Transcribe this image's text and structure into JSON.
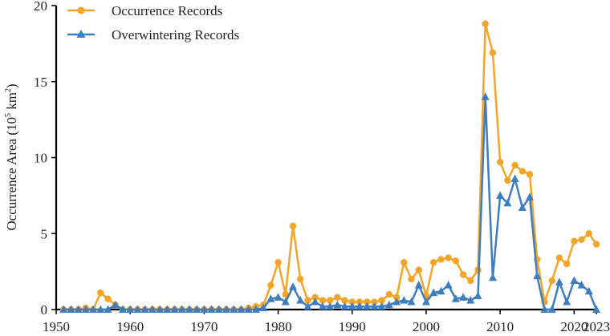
{
  "chart_data": {
    "type": "line",
    "xlabel": "",
    "ylabel": "Occurrence Area (10",
    "ylabel_sup": "5",
    "ylabel_unit": " km",
    "ylabel_unit_sup": "2",
    "ylabel_close": ")",
    "xlim": [
      1950,
      2023
    ],
    "ylim": [
      0,
      20
    ],
    "x_ticks": [
      1950,
      1960,
      1970,
      1980,
      1990,
      2000,
      2010,
      2020,
      2023
    ],
    "x_tick_labels": [
      "1950",
      "1960",
      "1970",
      "1980",
      "1990",
      "2000",
      "2010",
      "2020",
      "2023"
    ],
    "y_ticks": [
      0,
      5,
      10,
      15,
      20
    ],
    "y_tick_labels": [
      "0",
      "5",
      "10",
      "15",
      "20"
    ],
    "grid": false,
    "legend_position": "top-left",
    "x": [
      1951,
      1952,
      1953,
      1954,
      1955,
      1956,
      1957,
      1958,
      1959,
      1960,
      1961,
      1962,
      1963,
      1964,
      1965,
      1966,
      1967,
      1968,
      1969,
      1970,
      1971,
      1972,
      1973,
      1974,
      1975,
      1976,
      1977,
      1978,
      1979,
      1980,
      1981,
      1982,
      1983,
      1984,
      1985,
      1986,
      1987,
      1988,
      1989,
      1990,
      1991,
      1992,
      1993,
      1994,
      1995,
      1996,
      1997,
      1998,
      1999,
      2000,
      2001,
      2002,
      2003,
      2004,
      2005,
      2006,
      2007,
      2008,
      2009,
      2010,
      2011,
      2012,
      2013,
      2014,
      2015,
      2016,
      2017,
      2018,
      2019,
      2020,
      2021,
      2022,
      2023
    ],
    "series": [
      {
        "name": "Occurrence Records",
        "color": "#F2A526",
        "marker": "circle",
        "values": [
          0,
          0,
          0,
          0.1,
          0,
          1.1,
          0.7,
          0.3,
          0,
          0,
          0,
          0,
          0,
          0,
          0,
          0,
          0,
          0,
          0,
          0,
          0,
          0,
          0,
          0,
          0,
          0.1,
          0.2,
          0.3,
          1.6,
          3.1,
          1.0,
          5.5,
          2.0,
          0.6,
          0.8,
          0.6,
          0.6,
          0.8,
          0.6,
          0.5,
          0.5,
          0.5,
          0.5,
          0.6,
          1.0,
          0.8,
          3.1,
          2.0,
          2.6,
          0.9,
          3.1,
          3.3,
          3.4,
          3.2,
          2.3,
          1.9,
          2.6,
          18.8,
          16.9,
          9.7,
          8.5,
          9.5,
          9.1,
          8.9,
          3.3,
          0.5,
          1.9,
          3.4,
          3.0,
          4.5,
          4.6,
          5.0,
          4.3
        ]
      },
      {
        "name": "Overwintering Records",
        "color": "#3E7DC0",
        "marker": "triangle",
        "values": [
          0,
          0,
          0,
          0,
          0,
          0,
          0,
          0.3,
          0,
          0,
          0,
          0,
          0,
          0,
          0,
          0,
          0,
          0,
          0,
          0,
          0,
          0,
          0,
          0,
          0,
          0,
          0,
          0.1,
          0.7,
          0.8,
          0.5,
          1.5,
          0.6,
          0.2,
          0.5,
          0.2,
          0.2,
          0.3,
          0.2,
          0.2,
          0.2,
          0.2,
          0.2,
          0.2,
          0.3,
          0.5,
          0.6,
          0.5,
          1.6,
          0.5,
          1.1,
          1.2,
          1.6,
          0.7,
          0.8,
          0.6,
          0.9,
          14.0,
          2.1,
          7.5,
          7.0,
          8.6,
          6.7,
          7.4,
          2.2,
          0,
          0,
          1.8,
          0.5,
          1.9,
          1.6,
          1.2,
          0
        ]
      }
    ]
  }
}
